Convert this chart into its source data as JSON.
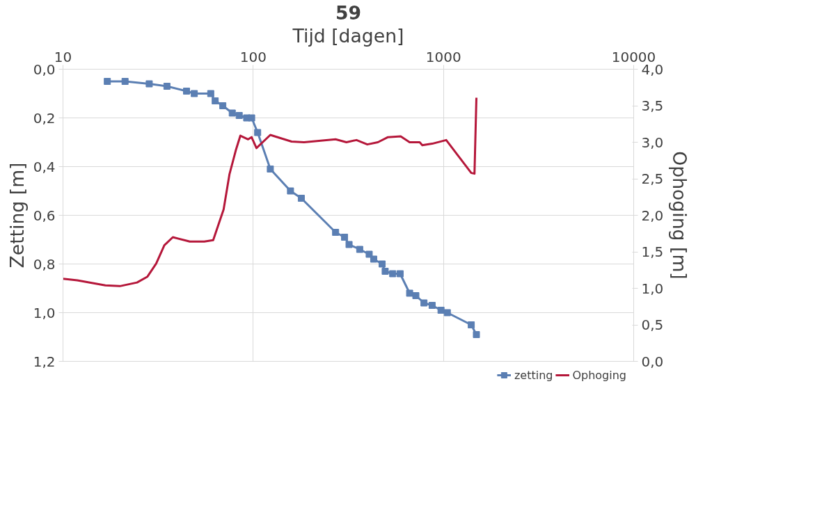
{
  "chart_data": {
    "type": "line",
    "title": "59",
    "xlabel": "Tijd [dagen]",
    "ylabel": "Zetting [m]",
    "y2label": "Ophoging [m]",
    "log": "x",
    "grid": true,
    "legend": "bottom",
    "xlim": [
      10,
      10000
    ],
    "xticks": [
      10,
      100,
      1000,
      10000
    ],
    "ylim": [
      1.2,
      0
    ],
    "yticks": [
      {
        "value": 0,
        "label": "0,0"
      },
      {
        "value": 0.2,
        "label": "0,2"
      },
      {
        "value": 0.4,
        "label": "0,4"
      },
      {
        "value": 0.6,
        "label": "0,6"
      },
      {
        "value": 0.8,
        "label": "0,8"
      },
      {
        "value": 1.0,
        "label": "1,0"
      },
      {
        "value": 1.2,
        "label": "1,2"
      }
    ],
    "y2lim": [
      0,
      4
    ],
    "y2ticks": [
      {
        "value": 0,
        "label": "0,0"
      },
      {
        "value": 0.5,
        "label": "0,5"
      },
      {
        "value": 1.0,
        "label": "1,0"
      },
      {
        "value": 1.5,
        "label": "1,5"
      },
      {
        "value": 2.0,
        "label": "2,0"
      },
      {
        "value": 2.5,
        "label": "2,5"
      },
      {
        "value": 3.0,
        "label": "3,0"
      },
      {
        "value": 3.5,
        "label": "3,5"
      },
      {
        "value": 4.0,
        "label": "4,0"
      }
    ],
    "series": [
      {
        "name": "zetting",
        "color": "#5b7fb3",
        "marker": "square",
        "x": [
          17.1,
          21.2,
          28.4,
          35.2,
          44.6,
          49,
          59.8,
          63.1,
          69.2,
          77.6,
          84.4,
          92.4,
          98.1,
          105.5,
          123,
          157,
          179,
          271,
          302,
          319,
          363,
          407,
          430,
          476,
          494,
          541,
          592,
          664,
          716,
          790,
          872,
          971,
          1048,
          1400,
          1490
        ],
        "values": [
          0.05,
          0.05,
          0.06,
          0.07,
          0.09,
          0.1,
          0.1,
          0.13,
          0.15,
          0.18,
          0.19,
          0.2,
          0.2,
          0.26,
          0.41,
          0.5,
          0.53,
          0.67,
          0.69,
          0.72,
          0.74,
          0.76,
          0.78,
          0.8,
          0.83,
          0.84,
          0.84,
          0.92,
          0.93,
          0.96,
          0.97,
          0.99,
          1.0,
          1.05,
          1.09
        ]
      },
      {
        "name": "Ophoging",
        "color": "#b5173a",
        "axis": "y2",
        "marker": "none",
        "x": [
          10,
          11.9,
          16.7,
          19.9,
          24.5,
          27.8,
          30.9,
          34.1,
          37.8,
          46.4,
          55.3,
          61.6,
          69.9,
          75,
          81,
          85.6,
          94,
          98,
          104,
          123,
          159,
          185,
          271,
          309,
          349,
          398,
          452,
          511,
          596,
          664,
          750,
          774,
          872,
          1034,
          1400,
          1456,
          1490
        ],
        "values": [
          1.13,
          1.11,
          1.04,
          1.03,
          1.08,
          1.16,
          1.34,
          1.59,
          1.7,
          1.64,
          1.64,
          1.66,
          2.08,
          2.56,
          2.89,
          3.09,
          3.04,
          3.07,
          2.92,
          3.1,
          3.01,
          3.0,
          3.04,
          3.0,
          3.03,
          2.97,
          3.0,
          3.07,
          3.08,
          3.0,
          3.0,
          2.96,
          2.98,
          3.03,
          2.58,
          2.57,
          3.61
        ]
      }
    ]
  }
}
